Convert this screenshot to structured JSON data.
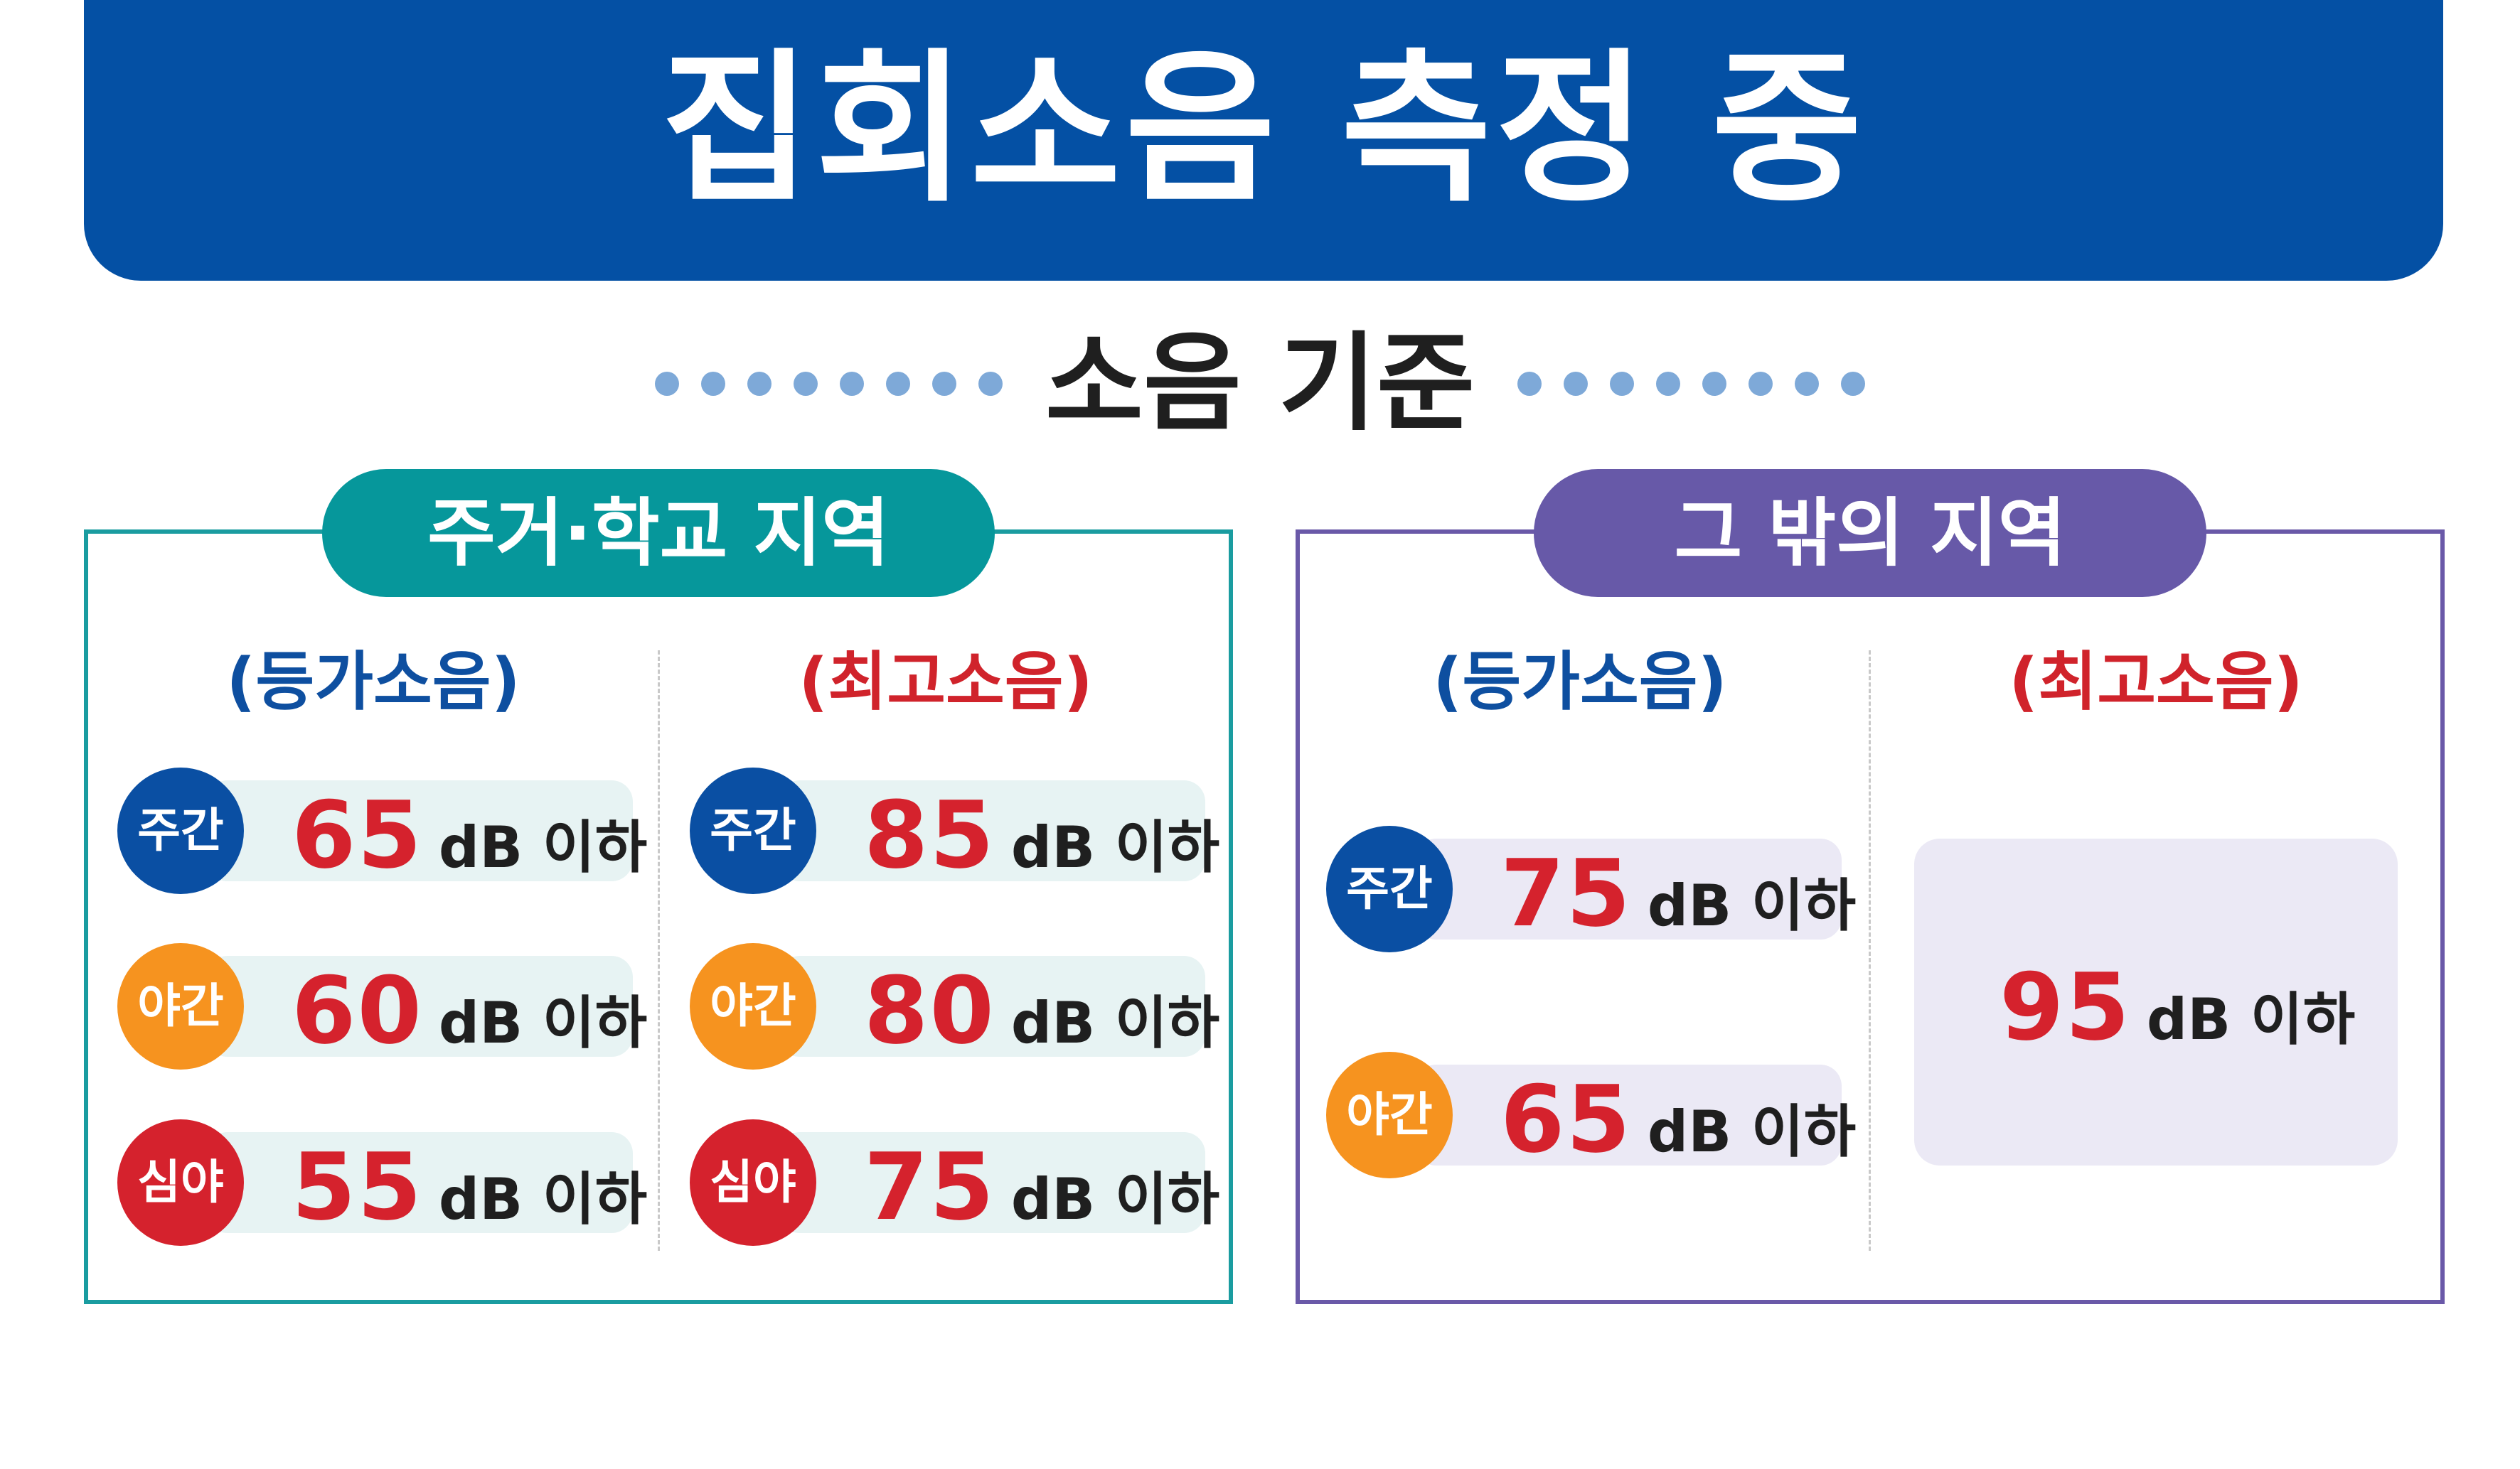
{
  "header": {
    "title": "집회소음 측정 중"
  },
  "subtitle": "소음 기준",
  "colors": {
    "banner": "#0450a4",
    "teal": "#06979b",
    "purple": "#6759a8",
    "value_red": "#d5222d",
    "day": "#0a4fa3",
    "night": "#f6931f",
    "late_night": "#d5222d"
  },
  "zones": [
    {
      "label": "주거·학교 지역",
      "equivalent": {
        "heading": "(등가소음)",
        "rows": [
          {
            "period": "주간",
            "value": "65",
            "unit": "dB 이하"
          },
          {
            "period": "야간",
            "value": "60",
            "unit": "dB 이하"
          },
          {
            "period": "심야",
            "value": "55",
            "unit": "dB 이하"
          }
        ]
      },
      "maximum": {
        "heading": "(최고소음)",
        "rows": [
          {
            "period": "주간",
            "value": "85",
            "unit": "dB 이하"
          },
          {
            "period": "야간",
            "value": "80",
            "unit": "dB 이하"
          },
          {
            "period": "심야",
            "value": "75",
            "unit": "dB 이하"
          }
        ]
      }
    },
    {
      "label": "그 밖의 지역",
      "equivalent": {
        "heading": "(등가소음)",
        "rows": [
          {
            "period": "주간",
            "value": "75",
            "unit": "dB 이하"
          },
          {
            "period": "야간",
            "value": "65",
            "unit": "dB 이하"
          }
        ]
      },
      "maximum": {
        "heading": "(최고소음)",
        "rows": [
          {
            "value": "95",
            "unit": "dB 이하"
          }
        ]
      }
    }
  ]
}
